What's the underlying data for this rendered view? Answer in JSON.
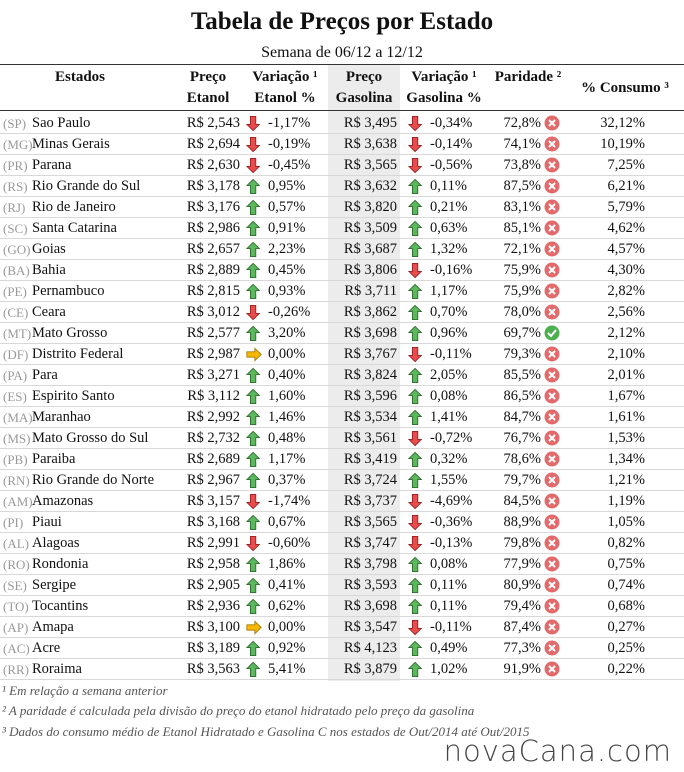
{
  "header": {
    "title": "Tabela de Preços por Estado",
    "subtitle": "Semana de 06/12 a 12/12"
  },
  "table": {
    "columns": [
      [
        "Estados"
      ],
      [
        "Preço",
        "Etanol"
      ],
      [
        "Variação ¹",
        "Etanol %"
      ],
      [
        "Preço",
        "Gasolina"
      ],
      [
        "Variação ¹",
        "Gasolina %"
      ],
      [
        "Paridade ²"
      ],
      [
        "% Consumo ³"
      ]
    ],
    "rows": [
      [
        "(SP)",
        "Sao Paulo",
        "R$ 2,543",
        "-1,17%",
        "R$ 3,495",
        "-0,34%",
        "72,8%",
        "32,12%"
      ],
      [
        "(MG)",
        "Minas Gerais",
        "R$ 2,694",
        "-0,19%",
        "R$ 3,638",
        "-0,14%",
        "74,1%",
        "10,19%"
      ],
      [
        "(PR)",
        "Parana",
        "R$ 2,630",
        "-0,45%",
        "R$ 3,565",
        "-0,56%",
        "73,8%",
        "7,25%"
      ],
      [
        "(RS)",
        "Rio Grande do Sul",
        "R$ 3,178",
        "0,95%",
        "R$ 3,632",
        "0,11%",
        "87,5%",
        "6,21%"
      ],
      [
        "(RJ)",
        "Rio de Janeiro",
        "R$ 3,176",
        "0,57%",
        "R$ 3,820",
        "0,21%",
        "83,1%",
        "5,79%"
      ],
      [
        "(SC)",
        "Santa Catarina",
        "R$ 2,986",
        "0,91%",
        "R$ 3,509",
        "0,63%",
        "85,1%",
        "4,62%"
      ],
      [
        "(GO)",
        "Goias",
        "R$ 2,657",
        "2,23%",
        "R$ 3,687",
        "1,32%",
        "72,1%",
        "4,57%"
      ],
      [
        "(BA)",
        "Bahia",
        "R$ 2,889",
        "0,45%",
        "R$ 3,806",
        "-0,16%",
        "75,9%",
        "4,30%"
      ],
      [
        "(PE)",
        "Pernambuco",
        "R$ 2,815",
        "0,93%",
        "R$ 3,711",
        "1,17%",
        "75,9%",
        "2,82%"
      ],
      [
        "(CE)",
        "Ceara",
        "R$ 3,012",
        "-0,26%",
        "R$ 3,862",
        "0,70%",
        "78,0%",
        "2,56%"
      ],
      [
        "(MT)",
        "Mato Grosso",
        "R$ 2,577",
        "3,20%",
        "R$ 3,698",
        "0,96%",
        "69,7%",
        "2,12%"
      ],
      [
        "(DF)",
        "Distrito Federal",
        "R$ 2,987",
        "0,00%",
        "R$ 3,767",
        "-0,11%",
        "79,3%",
        "2,10%"
      ],
      [
        "(PA)",
        "Para",
        "R$ 3,271",
        "0,40%",
        "R$ 3,824",
        "2,05%",
        "85,5%",
        "2,01%"
      ],
      [
        "(ES)",
        "Espirito Santo",
        "R$ 3,112",
        "1,60%",
        "R$ 3,596",
        "0,08%",
        "86,5%",
        "1,67%"
      ],
      [
        "(MA)",
        "Maranhao",
        "R$ 2,992",
        "1,46%",
        "R$ 3,534",
        "1,41%",
        "84,7%",
        "1,61%"
      ],
      [
        "(MS)",
        "Mato Grosso do Sul",
        "R$ 2,732",
        "0,48%",
        "R$ 3,561",
        "-0,72%",
        "76,7%",
        "1,53%"
      ],
      [
        "(PB)",
        "Paraiba",
        "R$ 2,689",
        "1,17%",
        "R$ 3,419",
        "0,32%",
        "78,6%",
        "1,34%"
      ],
      [
        "(RN)",
        "Rio Grande do Norte",
        "R$ 2,967",
        "0,37%",
        "R$ 3,724",
        "1,55%",
        "79,7%",
        "1,21%"
      ],
      [
        "(AM)",
        "Amazonas",
        "R$ 3,157",
        "-1,74%",
        "R$ 3,737",
        "-4,69%",
        "84,5%",
        "1,19%"
      ],
      [
        "(PI)",
        "Piaui",
        "R$ 3,168",
        "0,67%",
        "R$ 3,565",
        "-0,36%",
        "88,9%",
        "1,05%"
      ],
      [
        "(AL)",
        "Alagoas",
        "R$ 2,991",
        "-0,60%",
        "R$ 3,747",
        "-0,13%",
        "79,8%",
        "0,82%"
      ],
      [
        "(RO)",
        "Rondonia",
        "R$ 2,958",
        "1,86%",
        "R$ 3,798",
        "0,08%",
        "77,9%",
        "0,75%"
      ],
      [
        "(SE)",
        "Sergipe",
        "R$ 2,905",
        "0,41%",
        "R$ 3,593",
        "0,11%",
        "80,9%",
        "0,74%"
      ],
      [
        "(TO)",
        "Tocantins",
        "R$ 2,936",
        "0,62%",
        "R$ 3,698",
        "0,11%",
        "79,4%",
        "0,68%"
      ],
      [
        "(AP)",
        "Amapa",
        "R$ 3,100",
        "0,00%",
        "R$ 3,547",
        "-0,11%",
        "87,4%",
        "0,27%"
      ],
      [
        "(AC)",
        "Acre",
        "R$ 3,189",
        "0,92%",
        "R$ 4,123",
        "0,49%",
        "77,3%",
        "0,25%"
      ],
      [
        "(RR)",
        "Roraima",
        "R$ 3,563",
        "5,41%",
        "R$ 3,879",
        "1,02%",
        "91,9%",
        "0,22%"
      ]
    ]
  },
  "footnotes": [
    "¹ Em relação a semana anterior",
    "² A paridade é calculada pela divisão do preço do etanol hidratado pelo preço da gasolina",
    "³ Dados do consumo médio de Etanol Hidratado e Gasolina C nos estados de Out/2014 até Out/2015"
  ],
  "logo": "novaCana.com"
}
